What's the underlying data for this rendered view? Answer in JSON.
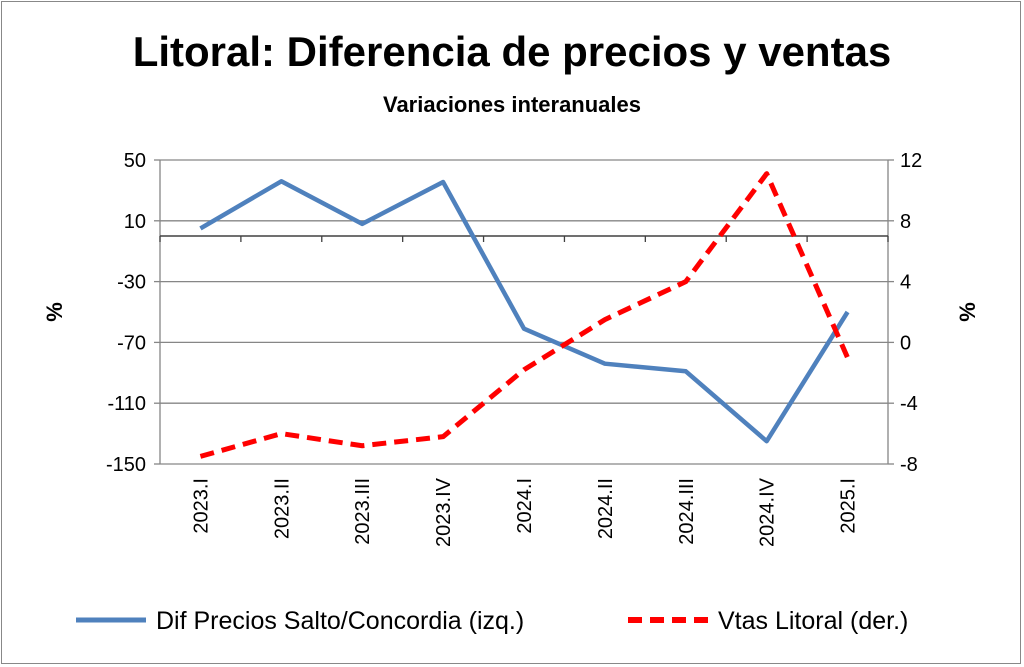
{
  "chart_data": {
    "type": "line",
    "title": "Litoral: Diferencia de precios y ventas",
    "subtitle": "Variaciones interanuales",
    "categories": [
      "2023.I",
      "2023.II",
      "2023.III",
      "2023.IV",
      "2024.I",
      "2024.II",
      "2024.III",
      "2024.IV",
      "2025.I"
    ],
    "ylabel": "%",
    "y2label": "%",
    "ylim": [
      -150,
      50
    ],
    "yticks": [
      50,
      10,
      -30,
      -70,
      -110,
      -150
    ],
    "y2lim": [
      -8,
      12
    ],
    "y2ticks": [
      12,
      8,
      4,
      0,
      -4,
      -8
    ],
    "x_axis_crosses_at": 0,
    "grid": true,
    "legend_position": "bottom",
    "series": [
      {
        "name": "Dif Precios Salto/Concordia (izq.)",
        "axis": "left",
        "color": "#4F81BD",
        "style": "solid",
        "values": [
          5,
          36,
          8,
          35.5,
          -61,
          -84,
          -89,
          -135,
          -50
        ]
      },
      {
        "name": "Vtas Litoral (der.)",
        "axis": "right",
        "color": "#FF0000",
        "style": "dashed",
        "values": [
          -7.5,
          -6,
          -6.8,
          -6.2,
          -1.8,
          1.5,
          4,
          11.1,
          -1
        ]
      }
    ]
  }
}
